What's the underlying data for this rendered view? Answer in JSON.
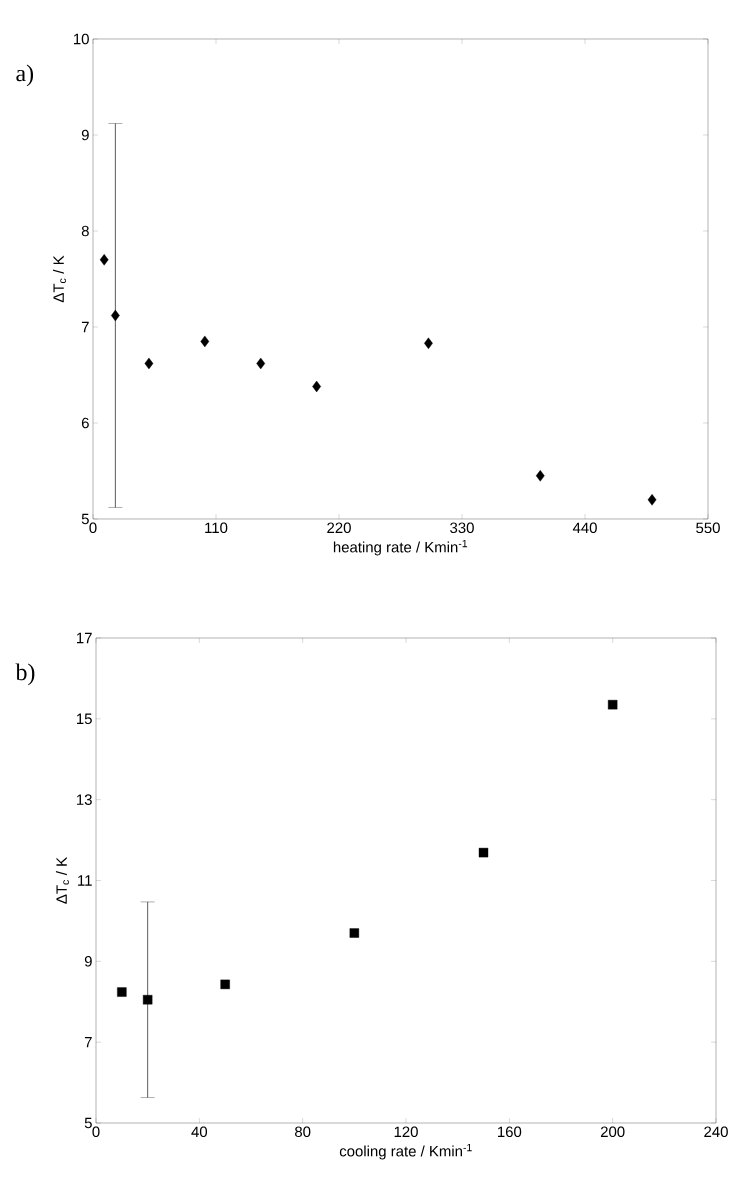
{
  "chart_data": [
    {
      "type": "scatter",
      "x": [
        10,
        20,
        50,
        100,
        150,
        200,
        300,
        400,
        500
      ],
      "values": [
        7.7,
        7.12,
        6.62,
        6.85,
        6.62,
        6.38,
        6.83,
        5.45,
        5.2
      ],
      "errors": [
        null,
        2.0,
        null,
        null,
        null,
        null,
        null,
        null,
        null
      ],
      "color": "#000000",
      "marker": "diamond",
      "xlabel": "heating rate / Kmin$^{-1}$",
      "ylabel": "ΔT$_{c}$ / K",
      "annotations": [
        "a)"
      ],
      "xlim": [
        0,
        550
      ],
      "xticks": [
        0,
        110,
        220,
        330,
        440,
        550
      ],
      "ylim": [
        5,
        10
      ],
      "yticks": [
        5,
        6,
        7,
        8,
        9,
        10
      ],
      "grid": false
    },
    {
      "type": "scatter",
      "x": [
        10,
        20,
        50,
        100,
        150,
        200
      ],
      "values": [
        8.24,
        8.05,
        8.43,
        9.7,
        11.69,
        15.35
      ],
      "errors": [
        null,
        2.42,
        null,
        null,
        null,
        null
      ],
      "color": "#000000",
      "marker": "square",
      "xlabel": "cooling rate / Kmin$^{-1}$",
      "ylabel": "ΔT$_{c}$ / K",
      "annotations": [
        "b)"
      ],
      "xlim": [
        0,
        240
      ],
      "xticks": [
        0,
        40,
        80,
        120,
        160,
        200,
        240
      ],
      "ylim": [
        5,
        17
      ],
      "yticks": [
        5,
        7,
        9,
        11,
        13,
        15,
        17
      ],
      "grid": false
    }
  ]
}
